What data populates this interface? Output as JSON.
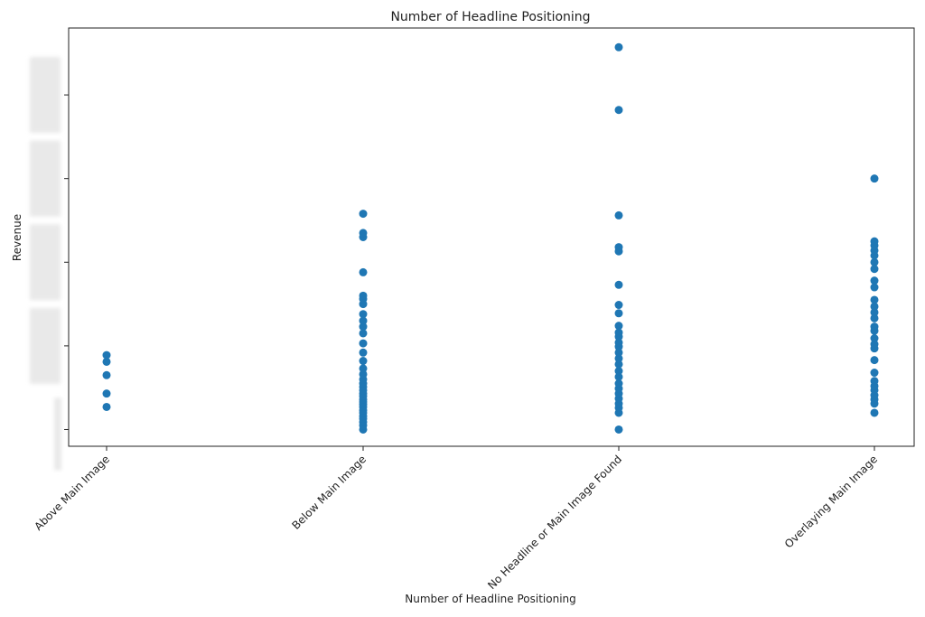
{
  "chart_data": {
    "type": "scatter",
    "title": "Number of Headline Positioning",
    "xlabel": "Number of Headline Positioning",
    "ylabel": "Revenue",
    "categories": [
      "Above Main Image",
      "Below Main Image",
      "No Headline or Main Image Found",
      "Overlaying Main Image"
    ],
    "ylim": [
      -0.2,
      4.8
    ],
    "yticks": [
      0,
      1,
      2,
      3,
      4
    ],
    "ytick_labels_visible": false,
    "grid": false,
    "color": "#1f77b4",
    "series": [
      {
        "values": [
          {
            "x": "Above Main Image",
            "y": [
              0.27,
              0.43,
              0.65,
              0.81,
              0.89
            ]
          },
          {
            "x": "Below Main Image",
            "y": [
              0.0,
              0.05,
              0.09,
              0.13,
              0.16,
              0.2,
              0.23,
              0.27,
              0.3,
              0.33,
              0.36,
              0.4,
              0.43,
              0.47,
              0.51,
              0.55,
              0.6,
              0.66,
              0.73,
              0.82,
              0.92,
              1.03,
              1.15,
              1.23,
              1.3,
              1.38,
              1.5,
              1.56,
              1.6,
              1.88,
              2.3,
              2.35,
              2.58
            ]
          },
          {
            "x": "No Headline or Main Image Found",
            "y": [
              0.0,
              0.2,
              0.26,
              0.31,
              0.37,
              0.43,
              0.49,
              0.55,
              0.63,
              0.7,
              0.78,
              0.85,
              0.92,
              0.99,
              1.04,
              1.11,
              1.16,
              1.24,
              1.39,
              1.49,
              1.73,
              2.13,
              2.18,
              2.56,
              3.82,
              4.57
            ]
          },
          {
            "x": "Overlaying Main Image",
            "y": [
              0.2,
              0.31,
              0.36,
              0.41,
              0.47,
              0.52,
              0.58,
              0.68,
              0.83,
              0.97,
              1.02,
              1.09,
              1.18,
              1.23,
              1.33,
              1.4,
              1.47,
              1.55,
              1.7,
              1.78,
              1.92,
              2.0,
              2.08,
              2.14,
              2.2,
              2.25,
              3.0
            ]
          }
        ]
      }
    ]
  }
}
